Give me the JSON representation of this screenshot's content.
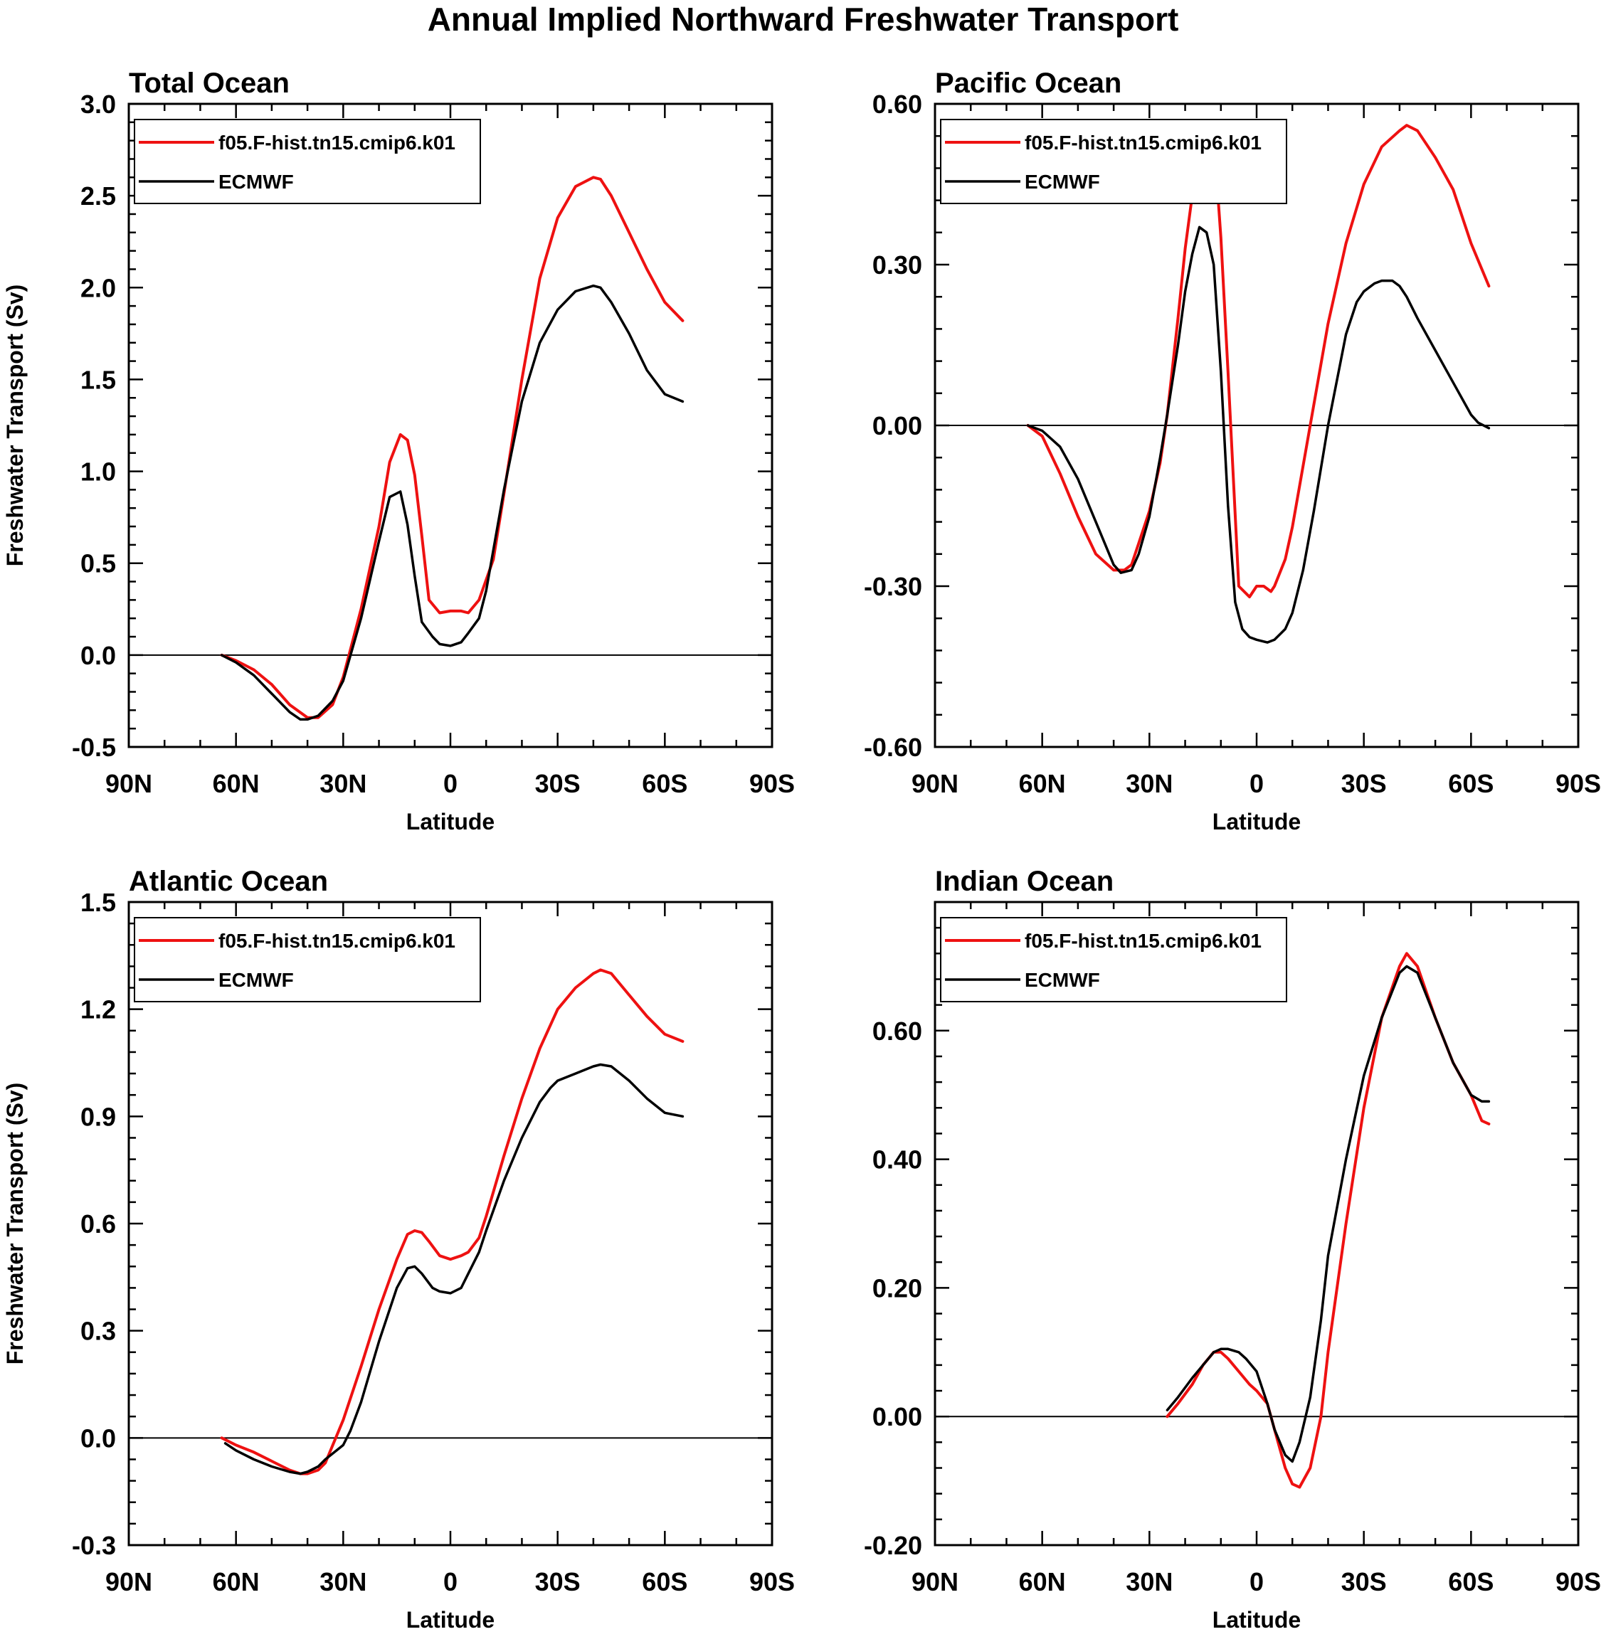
{
  "figure": {
    "title": "Annual Implied Northward Freshwater Transport"
  },
  "colors": {
    "model": "#ee1111",
    "ecmwf": "#000000",
    "axis": "#000000"
  },
  "chart_data": [
    {
      "type": "line",
      "title": "Total Ocean",
      "xlabel": "Latitude",
      "ylabel": "Freshwater Transport (Sv)",
      "xlim": [
        90,
        -90
      ],
      "ylim": [
        -0.5,
        3.0
      ],
      "x_ticks": [
        90,
        60,
        30,
        0,
        -30,
        -60,
        -90
      ],
      "x_tick_labels": [
        "90N",
        "60N",
        "30N",
        "0",
        "30S",
        "60S",
        "90S"
      ],
      "y_ticks": [
        -0.5,
        0.0,
        0.5,
        1.0,
        1.5,
        2.0,
        2.5,
        3.0
      ],
      "y_tick_labels": [
        "-0.5",
        "0.0",
        "0.5",
        "1.0",
        "1.5",
        "2.0",
        "2.5",
        "3.0"
      ],
      "zero_line": true,
      "legend_position": "top-left",
      "series": [
        {
          "name": "f05.F-hist.tn15.cmip6.k01",
          "color": "#ee1111",
          "x": [
            64,
            60,
            55,
            50,
            45,
            40,
            37,
            33,
            30,
            25,
            20,
            17,
            14,
            12,
            10,
            8,
            6,
            3,
            0,
            -3,
            -5,
            -8,
            -12,
            -15,
            -20,
            -25,
            -30,
            -35,
            -40,
            -42,
            -45,
            -50,
            -55,
            -60,
            -65
          ],
          "y": [
            0.0,
            -0.03,
            -0.08,
            -0.16,
            -0.27,
            -0.34,
            -0.34,
            -0.27,
            -0.12,
            0.25,
            0.7,
            1.05,
            1.2,
            1.17,
            0.98,
            0.65,
            0.3,
            0.23,
            0.24,
            0.24,
            0.23,
            0.3,
            0.52,
            0.88,
            1.5,
            2.05,
            2.38,
            2.55,
            2.6,
            2.59,
            2.5,
            2.3,
            2.1,
            1.92,
            1.82
          ]
        },
        {
          "name": "ECMWF",
          "color": "#000000",
          "x": [
            64,
            60,
            55,
            50,
            45,
            42,
            40,
            37,
            33,
            30,
            25,
            20,
            17,
            14,
            12,
            10,
            8,
            5,
            3,
            0,
            -3,
            -5,
            -8,
            -10,
            -15,
            -20,
            -25,
            -30,
            -35,
            -40,
            -42,
            -45,
            -50,
            -55,
            -60,
            -65
          ],
          "y": [
            0.0,
            -0.04,
            -0.11,
            -0.21,
            -0.31,
            -0.35,
            -0.35,
            -0.33,
            -0.25,
            -0.14,
            0.2,
            0.62,
            0.86,
            0.89,
            0.71,
            0.43,
            0.18,
            0.1,
            0.06,
            0.05,
            0.07,
            0.12,
            0.2,
            0.35,
            0.9,
            1.38,
            1.7,
            1.88,
            1.98,
            2.01,
            2.0,
            1.92,
            1.75,
            1.55,
            1.42,
            1.38
          ]
        }
      ]
    },
    {
      "type": "line",
      "title": "Pacific Ocean",
      "xlabel": "Latitude",
      "ylabel": "",
      "xlim": [
        90,
        -90
      ],
      "ylim": [
        -0.6,
        0.6
      ],
      "x_ticks": [
        90,
        60,
        30,
        0,
        -30,
        -60,
        -90
      ],
      "x_tick_labels": [
        "90N",
        "60N",
        "30N",
        "0",
        "30S",
        "60S",
        "90S"
      ],
      "y_ticks": [
        -0.6,
        -0.3,
        0.0,
        0.3,
        0.6
      ],
      "y_tick_labels": [
        "-0.60",
        "-0.30",
        "0.00",
        "0.30",
        "0.60"
      ],
      "zero_line": true,
      "legend_position": "top-left",
      "series": [
        {
          "name": "f05.F-hist.tn15.cmip6.k01",
          "color": "#ee1111",
          "x": [
            64,
            60,
            55,
            50,
            45,
            40,
            37,
            35,
            33,
            30,
            27,
            25,
            22,
            20,
            17,
            15,
            13,
            12,
            10,
            8,
            5,
            2,
            0,
            -2,
            -4,
            -5,
            -8,
            -10,
            -15,
            -20,
            -25,
            -30,
            -35,
            -40,
            -42,
            -45,
            -50,
            -55,
            -60,
            -65
          ],
          "y": [
            0.0,
            -0.02,
            -0.09,
            -0.17,
            -0.24,
            -0.27,
            -0.27,
            -0.26,
            -0.22,
            -0.16,
            -0.07,
            0.02,
            0.2,
            0.33,
            0.48,
            0.54,
            0.55,
            0.54,
            0.35,
            0.1,
            -0.3,
            -0.32,
            -0.3,
            -0.3,
            -0.31,
            -0.3,
            -0.25,
            -0.19,
            0.0,
            0.19,
            0.34,
            0.45,
            0.52,
            0.55,
            0.56,
            0.55,
            0.5,
            0.44,
            0.34,
            0.26
          ]
        },
        {
          "name": "ECMWF",
          "color": "#000000",
          "x": [
            64,
            60,
            55,
            50,
            45,
            40,
            38,
            35,
            33,
            30,
            27,
            25,
            22,
            20,
            18,
            16,
            14,
            12,
            10,
            8,
            6,
            4,
            2,
            0,
            -3,
            -5,
            -8,
            -10,
            -13,
            -16,
            -20,
            -25,
            -28,
            -30,
            -33,
            -35,
            -38,
            -40,
            -42,
            -45,
            -50,
            -55,
            -60,
            -62,
            -65
          ],
          "y": [
            0.0,
            -0.01,
            -0.04,
            -0.1,
            -0.18,
            -0.26,
            -0.275,
            -0.27,
            -0.24,
            -0.17,
            -0.06,
            0.02,
            0.15,
            0.25,
            0.32,
            0.37,
            0.36,
            0.3,
            0.1,
            -0.15,
            -0.33,
            -0.38,
            -0.395,
            -0.4,
            -0.405,
            -0.4,
            -0.38,
            -0.35,
            -0.27,
            -0.16,
            0.0,
            0.17,
            0.23,
            0.25,
            0.265,
            0.27,
            0.27,
            0.26,
            0.24,
            0.2,
            0.14,
            0.08,
            0.02,
            0.005,
            -0.005
          ]
        }
      ]
    },
    {
      "type": "line",
      "title": "Atlantic Ocean",
      "xlabel": "Latitude",
      "ylabel": "Freshwater Transport (Sv)",
      "xlim": [
        90,
        -90
      ],
      "ylim": [
        -0.3,
        1.5
      ],
      "x_ticks": [
        90,
        60,
        30,
        0,
        -30,
        -60,
        -90
      ],
      "x_tick_labels": [
        "90N",
        "60N",
        "30N",
        "0",
        "30S",
        "60S",
        "90S"
      ],
      "y_ticks": [
        -0.3,
        0.0,
        0.3,
        0.6,
        0.9,
        1.2,
        1.5
      ],
      "y_tick_labels": [
        "-0.3",
        "0.0",
        "0.3",
        "0.6",
        "0.9",
        "1.2",
        "1.5"
      ],
      "zero_line": true,
      "legend_position": "top-left",
      "series": [
        {
          "name": "f05.F-hist.tn15.cmip6.k01",
          "color": "#ee1111",
          "x": [
            64,
            60,
            55,
            50,
            45,
            42,
            40,
            37,
            35,
            30,
            25,
            20,
            15,
            12,
            10,
            8,
            6,
            3,
            0,
            -3,
            -5,
            -8,
            -10,
            -15,
            -20,
            -25,
            -30,
            -35,
            -40,
            -42,
            -45,
            -50,
            -55,
            -60,
            -65
          ],
          "y": [
            0.0,
            -0.02,
            -0.04,
            -0.065,
            -0.09,
            -0.1,
            -0.1,
            -0.09,
            -0.07,
            0.05,
            0.2,
            0.36,
            0.5,
            0.57,
            0.58,
            0.575,
            0.55,
            0.51,
            0.5,
            0.51,
            0.52,
            0.56,
            0.62,
            0.79,
            0.95,
            1.09,
            1.2,
            1.26,
            1.3,
            1.31,
            1.3,
            1.24,
            1.18,
            1.13,
            1.11
          ]
        },
        {
          "name": "ECMWF",
          "color": "#000000",
          "x": [
            63,
            60,
            55,
            50,
            45,
            42,
            40,
            37,
            35,
            30,
            28,
            25,
            20,
            15,
            12,
            10,
            8,
            5,
            3,
            0,
            -3,
            -5,
            -8,
            -10,
            -15,
            -20,
            -25,
            -28,
            -30,
            -35,
            -40,
            -42,
            -45,
            -50,
            -55,
            -60,
            -65
          ],
          "y": [
            -0.015,
            -0.035,
            -0.06,
            -0.08,
            -0.095,
            -0.1,
            -0.095,
            -0.08,
            -0.06,
            -0.02,
            0.02,
            0.1,
            0.27,
            0.42,
            0.475,
            0.48,
            0.46,
            0.42,
            0.41,
            0.405,
            0.42,
            0.46,
            0.52,
            0.58,
            0.72,
            0.84,
            0.94,
            0.98,
            1.0,
            1.02,
            1.04,
            1.045,
            1.04,
            1.0,
            0.95,
            0.91,
            0.9
          ]
        }
      ]
    },
    {
      "type": "line",
      "title": "Indian Ocean",
      "xlabel": "Latitude",
      "ylabel": "",
      "xlim": [
        90,
        -90
      ],
      "ylim": [
        -0.2,
        0.8
      ],
      "x_ticks": [
        90,
        60,
        30,
        0,
        -30,
        -60,
        -90
      ],
      "x_tick_labels": [
        "90N",
        "60N",
        "30N",
        "0",
        "30S",
        "60S",
        "90S"
      ],
      "y_ticks": [
        -0.2,
        0.0,
        0.2,
        0.4,
        0.6
      ],
      "y_tick_labels": [
        "-0.20",
        "0.00",
        "0.20",
        "0.40",
        "0.60"
      ],
      "zero_line": true,
      "legend_position": "top-left",
      "series": [
        {
          "name": "f05.F-hist.tn15.cmip6.k01",
          "color": "#ee1111",
          "x": [
            25,
            22,
            18,
            15,
            12,
            10,
            8,
            5,
            2,
            0,
            -3,
            -5,
            -8,
            -10,
            -12,
            -15,
            -18,
            -20,
            -25,
            -30,
            -35,
            -40,
            -42,
            -45,
            -50,
            -55,
            -60,
            -63,
            -65
          ],
          "y": [
            0.0,
            0.02,
            0.05,
            0.08,
            0.1,
            0.1,
            0.09,
            0.07,
            0.05,
            0.04,
            0.02,
            -0.02,
            -0.08,
            -0.105,
            -0.11,
            -0.08,
            0.0,
            0.1,
            0.3,
            0.48,
            0.62,
            0.7,
            0.72,
            0.7,
            0.62,
            0.55,
            0.5,
            0.46,
            0.455
          ]
        },
        {
          "name": "ECMWF",
          "color": "#000000",
          "x": [
            25,
            22,
            18,
            15,
            12,
            10,
            8,
            5,
            3,
            0,
            -3,
            -5,
            -8,
            -10,
            -12,
            -15,
            -18,
            -20,
            -25,
            -30,
            -35,
            -40,
            -42,
            -45,
            -50,
            -55,
            -60,
            -63,
            -65
          ],
          "y": [
            0.01,
            0.03,
            0.06,
            0.08,
            0.1,
            0.105,
            0.105,
            0.1,
            0.09,
            0.07,
            0.02,
            -0.02,
            -0.06,
            -0.07,
            -0.04,
            0.03,
            0.15,
            0.25,
            0.4,
            0.53,
            0.62,
            0.69,
            0.7,
            0.69,
            0.62,
            0.55,
            0.5,
            0.49,
            0.49
          ]
        }
      ]
    }
  ]
}
